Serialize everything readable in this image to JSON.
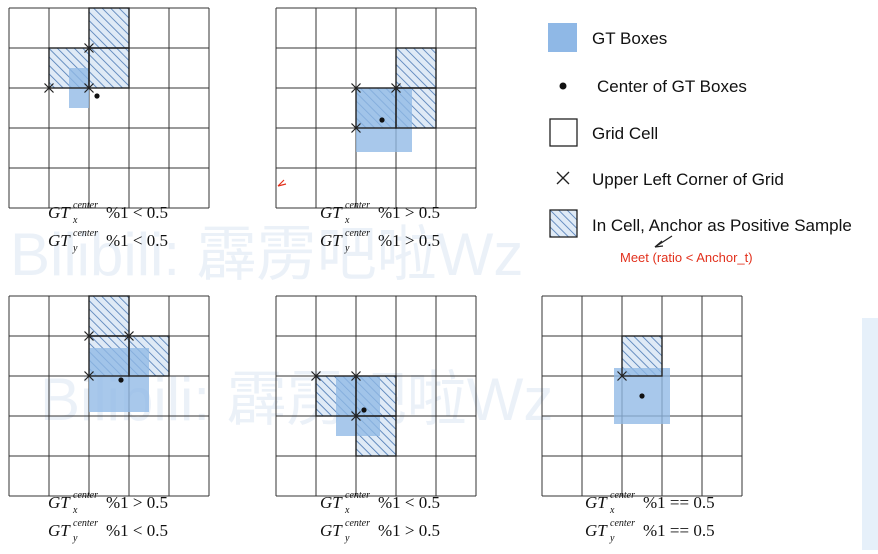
{
  "colors": {
    "gt_box": "#8fb8e6",
    "hatch_fill": "#dfeaf6",
    "hatch_line": "#4a78b4",
    "grid": "#333333",
    "note": "#e2311d"
  },
  "legend": {
    "gt_boxes": "GT Boxes",
    "center": "Center of GT Boxes",
    "grid_cell": "Grid Cell",
    "upper_left": "Upper Left Corner of Grid",
    "positive": "In Cell, Anchor as Positive Sample",
    "note": "Meet (ratio < Anchor_t)"
  },
  "watermark": "Bilibili: 霹雳吧啦Wz",
  "panels": [
    {
      "x_expr": "%1 < 0.5",
      "y_expr": "%1 < 0.5",
      "positive_cells": [
        [
          1,
          1
        ],
        [
          1,
          2
        ],
        [
          0,
          2
        ]
      ]
    },
    {
      "x_expr": "%1 > 0.5",
      "y_expr": "%1 > 0.5",
      "positive_cells": [
        [
          2,
          2
        ],
        [
          2,
          3
        ],
        [
          1,
          3
        ]
      ]
    },
    {
      "x_expr": "%1 > 0.5",
      "y_expr": "%1 < 0.5",
      "positive_cells": [
        [
          1,
          2
        ],
        [
          1,
          3
        ],
        [
          0,
          2
        ]
      ]
    },
    {
      "x_expr": "%1 < 0.5",
      "y_expr": "%1 > 0.5",
      "positive_cells": [
        [
          2,
          1
        ],
        [
          2,
          2
        ],
        [
          3,
          2
        ]
      ]
    },
    {
      "x_expr": "%1 == 0.5",
      "y_expr": "%1 == 0.5",
      "positive_cells": [
        [
          1,
          2
        ]
      ]
    }
  ],
  "caption_var": {
    "main": "GT",
    "sup": "center",
    "x": "x",
    "y": "y"
  }
}
